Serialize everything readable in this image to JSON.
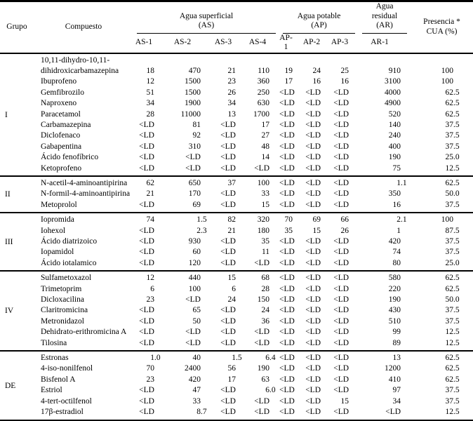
{
  "table": {
    "headers": {
      "grupo": "Grupo",
      "compuesto": "Compuesto",
      "spanners": [
        {
          "label": "Agua superficial",
          "sub": "(AS)",
          "cols": [
            "AS-1",
            "AS-2",
            "AS-3",
            "AS-4"
          ]
        },
        {
          "label": "Agua potable",
          "sub": "(AP)",
          "cols": [
            "AP-1",
            "AP-2",
            "AP-3"
          ]
        },
        {
          "label": "Agua residual",
          "sub": "(AR)",
          "cols": [
            "AR-1"
          ]
        }
      ],
      "presencia_line1": "Presencia *",
      "presencia_line2": "CUA (%)"
    },
    "below_lod_symbol": "<LD",
    "groups": [
      {
        "label": "I",
        "rows": [
          {
            "compuesto": "10,11-dihydro-10,11-dihidroxicarbamazepina",
            "values": [
              "18",
              "470",
              "21",
              "110",
              "19",
              "24",
              "25",
              "910",
              "100"
            ]
          },
          {
            "compuesto": "Ibuprofeno",
            "values": [
              "12",
              "1500",
              "23",
              "360",
              "17",
              "16",
              "16",
              "3100",
              "100"
            ]
          },
          {
            "compuesto": "Gemfibrozilo",
            "values": [
              "51",
              "1500",
              "26",
              "250",
              "<LD",
              "<LD",
              "<LD",
              "4000",
              "62.5"
            ]
          },
          {
            "compuesto": "Naproxeno",
            "values": [
              "34",
              "1900",
              "34",
              "630",
              "<LD",
              "<LD",
              "<LD",
              "4900",
              "62.5"
            ]
          },
          {
            "compuesto": "Paracetamol",
            "values": [
              "28",
              "11000",
              "13",
              "1700",
              "<LD",
              "<LD",
              "<LD",
              "520",
              "62.5"
            ]
          },
          {
            "compuesto": "Carbamazepina",
            "values": [
              "<LD",
              "81",
              "<LD",
              "17",
              "<LD",
              "<LD",
              "<LD",
              "140",
              "37.5"
            ]
          },
          {
            "compuesto": "Diclofenaco",
            "values": [
              "<LD",
              "92",
              "<LD",
              "27",
              "<LD",
              "<LD",
              "<LD",
              "240",
              "37.5"
            ]
          },
          {
            "compuesto": "Gabapentina",
            "values": [
              "<LD",
              "310",
              "<LD",
              "48",
              "<LD",
              "<LD",
              "<LD",
              "400",
              "37.5"
            ]
          },
          {
            "compuesto": "Ácido fenofíbrico",
            "values": [
              "<LD",
              "<LD",
              "<LD",
              "14",
              "<LD",
              "<LD",
              "<LD",
              "190",
              "25.0"
            ]
          },
          {
            "compuesto": "Ketoprofeno",
            "values": [
              "<LD",
              "<LD",
              "<LD",
              "<LD",
              "<LD",
              "<LD",
              "<LD",
              "75",
              "12.5"
            ]
          }
        ]
      },
      {
        "label": "II",
        "rows": [
          {
            "compuesto": "N-acetil-4-aminoantipirina",
            "values": [
              "62",
              "650",
              "37",
              "100",
              "<LD",
              "<LD",
              "<LD",
              "1.1",
              "62.5"
            ]
          },
          {
            "compuesto": "N-formil-4-aminoantipirina",
            "values": [
              "21",
              "170",
              "<LD",
              "33",
              "<LD",
              "<LD",
              "<LD",
              "350",
              "50.0"
            ]
          },
          {
            "compuesto": "Metoprolol",
            "values": [
              "<LD",
              "69",
              "<LD",
              "15",
              "<LD",
              "<LD",
              "<LD",
              "16",
              "37.5"
            ]
          }
        ]
      },
      {
        "label": "III",
        "rows": [
          {
            "compuesto": "Iopromida",
            "values": [
              "74",
              "1.5",
              "82",
              "320",
              "70",
              "69",
              "66",
              "2.1",
              "100"
            ]
          },
          {
            "compuesto": "Iohexol",
            "values": [
              "<LD",
              "2.3",
              "21",
              "180",
              "35",
              "15",
              "26",
              "1",
              "87.5"
            ]
          },
          {
            "compuesto": "Ácido diatrizoico",
            "values": [
              "<LD",
              "930",
              "<LD",
              "35",
              "<LD",
              "<LD",
              "<LD",
              "420",
              "37.5"
            ]
          },
          {
            "compuesto": "Iopamidol",
            "values": [
              "<LD",
              "60",
              "<LD",
              "11",
              "<LD",
              "<LD",
              "<LD",
              "74",
              "37.5"
            ]
          },
          {
            "compuesto": "Ácido iotalamico",
            "values": [
              "<LD",
              "120",
              "<LD",
              "<LD",
              "<LD",
              "<LD",
              "<LD",
              "80",
              "25.0"
            ]
          }
        ]
      },
      {
        "label": "IV",
        "rows": [
          {
            "compuesto": "Sulfametoxazol",
            "values": [
              "12",
              "440",
              "15",
              "68",
              "<LD",
              "<LD",
              "<LD",
              "580",
              "62.5"
            ]
          },
          {
            "compuesto": "Trimetoprim",
            "values": [
              "6",
              "100",
              "6",
              "28",
              "<LD",
              "<LD",
              "<LD",
              "220",
              "62.5"
            ]
          },
          {
            "compuesto": "Dicloxacilina",
            "values": [
              "23",
              "<LD",
              "24",
              "150",
              "<LD",
              "<LD",
              "<LD",
              "190",
              "50.0"
            ]
          },
          {
            "compuesto": "Claritromicina",
            "values": [
              "<LD",
              "65",
              "<LD",
              "24",
              "<LD",
              "<LD",
              "<LD",
              "430",
              "37.5"
            ]
          },
          {
            "compuesto": "Metronidazol",
            "values": [
              "<LD",
              "50",
              "<LD",
              "36",
              "<LD",
              "<LD",
              "<LD",
              "510",
              "37.5"
            ]
          },
          {
            "compuesto": "Dehidrato-erithromicina A",
            "values": [
              "<LD",
              "<LD",
              "<LD",
              "<LD",
              "<LD",
              "<LD",
              "<LD",
              "99",
              "12.5"
            ]
          },
          {
            "compuesto": "Tilosina",
            "values": [
              "<LD",
              "<LD",
              "<LD",
              "<LD",
              "<LD",
              "<LD",
              "<LD",
              "89",
              "12.5"
            ]
          }
        ]
      },
      {
        "label": "DE",
        "rows": [
          {
            "compuesto": "Estronas",
            "values": [
              "1.0",
              "40",
              "1.5",
              "6.4",
              "<LD",
              "<LD",
              "<LD",
              "13",
              "62.5"
            ]
          },
          {
            "compuesto": "4-iso-nonilfenol",
            "values": [
              "70",
              "2400",
              "56",
              "190",
              "<LD",
              "<LD",
              "<LD",
              "1200",
              "62.5"
            ]
          },
          {
            "compuesto": "Bisfenol A",
            "values": [
              "23",
              "420",
              "17",
              "63",
              "<LD",
              "<LD",
              "<LD",
              "410",
              "62.5"
            ]
          },
          {
            "compuesto": "Estriol",
            "values": [
              "<LD",
              "47",
              "<LD",
              "6.0",
              "<LD",
              "<LD",
              "<LD",
              "97",
              "37.5"
            ]
          },
          {
            "compuesto": "4-tert-octilfenol",
            "values": [
              "<LD",
              "33",
              "<LD",
              "<LD",
              "<LD",
              "<LD",
              "15",
              "34",
              "37.5"
            ]
          },
          {
            "compuesto": "17β-estradiol",
            "values": [
              "<LD",
              "8.7",
              "<LD",
              "<LD",
              "<LD",
              "<LD",
              "<LD",
              "<LD",
              "12.5"
            ]
          }
        ]
      }
    ]
  }
}
